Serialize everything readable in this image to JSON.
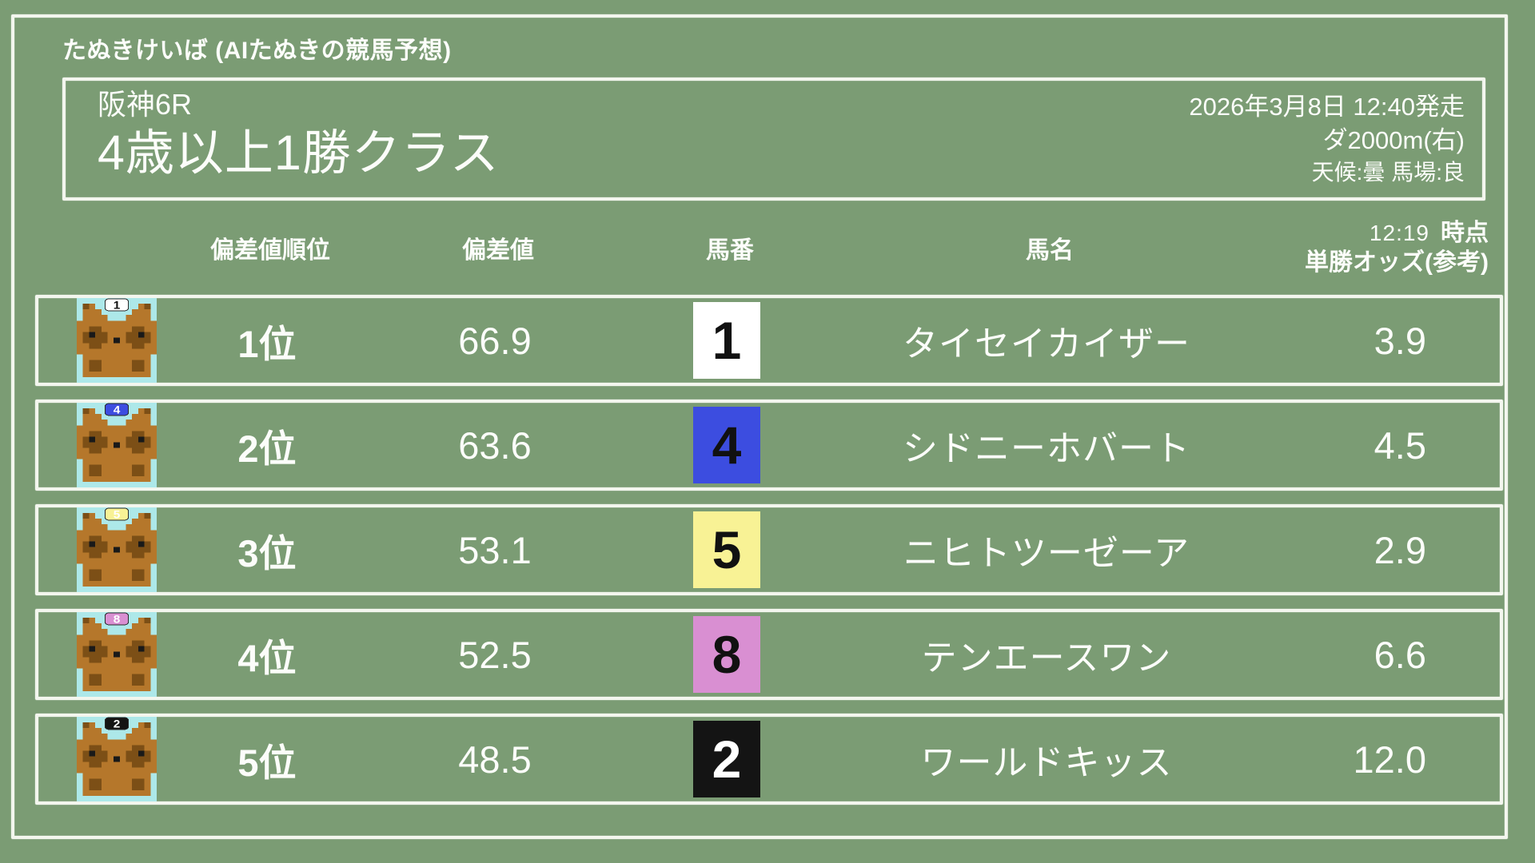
{
  "app": {
    "title": "たぬきけいば (AIたぬきの競馬予想)"
  },
  "race": {
    "venue_race": "阪神6R",
    "title": "4歳以上1勝クラス",
    "start_datetime": "2026年3月8日 12:40発走",
    "course": "ダ2000m(右)",
    "conditions": "天候:曇 馬場:良"
  },
  "table": {
    "headers": {
      "rank": "偏差値順位",
      "score": "偏差値",
      "number": "馬番",
      "name": "馬名",
      "odds_time": "12:19",
      "odds_time_suffix": "時点",
      "odds_label": "単勝オッズ(参考)"
    },
    "rows": [
      {
        "icon": "tanuki-icon",
        "rank": "1位",
        "score": "66.9",
        "number": "1",
        "name": "タイセイカイザー",
        "odds": "3.9",
        "number_bg": "#ffffff",
        "number_fg": "#111111",
        "cap_fg": "#111111"
      },
      {
        "icon": "tanuki-icon",
        "rank": "2位",
        "score": "63.6",
        "number": "4",
        "name": "シドニーホバート",
        "odds": "4.5",
        "number_bg": "#3c4de0",
        "number_fg": "#111111",
        "cap_fg": "#ffffff"
      },
      {
        "icon": "tanuki-icon",
        "rank": "3位",
        "score": "53.1",
        "number": "5",
        "name": "ニヒトツーゼーア",
        "odds": "2.9",
        "number_bg": "#f8f295",
        "number_fg": "#111111",
        "cap_fg": "#ffffff"
      },
      {
        "icon": "tanuki-icon",
        "rank": "4位",
        "score": "52.5",
        "number": "8",
        "name": "テンエースワン",
        "odds": "6.6",
        "number_bg": "#d98fd2",
        "number_fg": "#111111",
        "cap_fg": "#ffffff"
      },
      {
        "icon": "tanuki-icon",
        "rank": "5位",
        "score": "48.5",
        "number": "2",
        "name": "ワールドキッス",
        "odds": "12.0",
        "number_bg": "#141414",
        "number_fg": "#ffffff",
        "cap_fg": "#ffffff"
      }
    ]
  },
  "colors": {
    "background": "#7b9c74",
    "chalk_border": "#f3f6ee",
    "text": "#fcfdfa",
    "icon_background": "#ade8e9",
    "tanuki_body": "#b5772b",
    "tanuki_dark": "#7c4f16"
  }
}
